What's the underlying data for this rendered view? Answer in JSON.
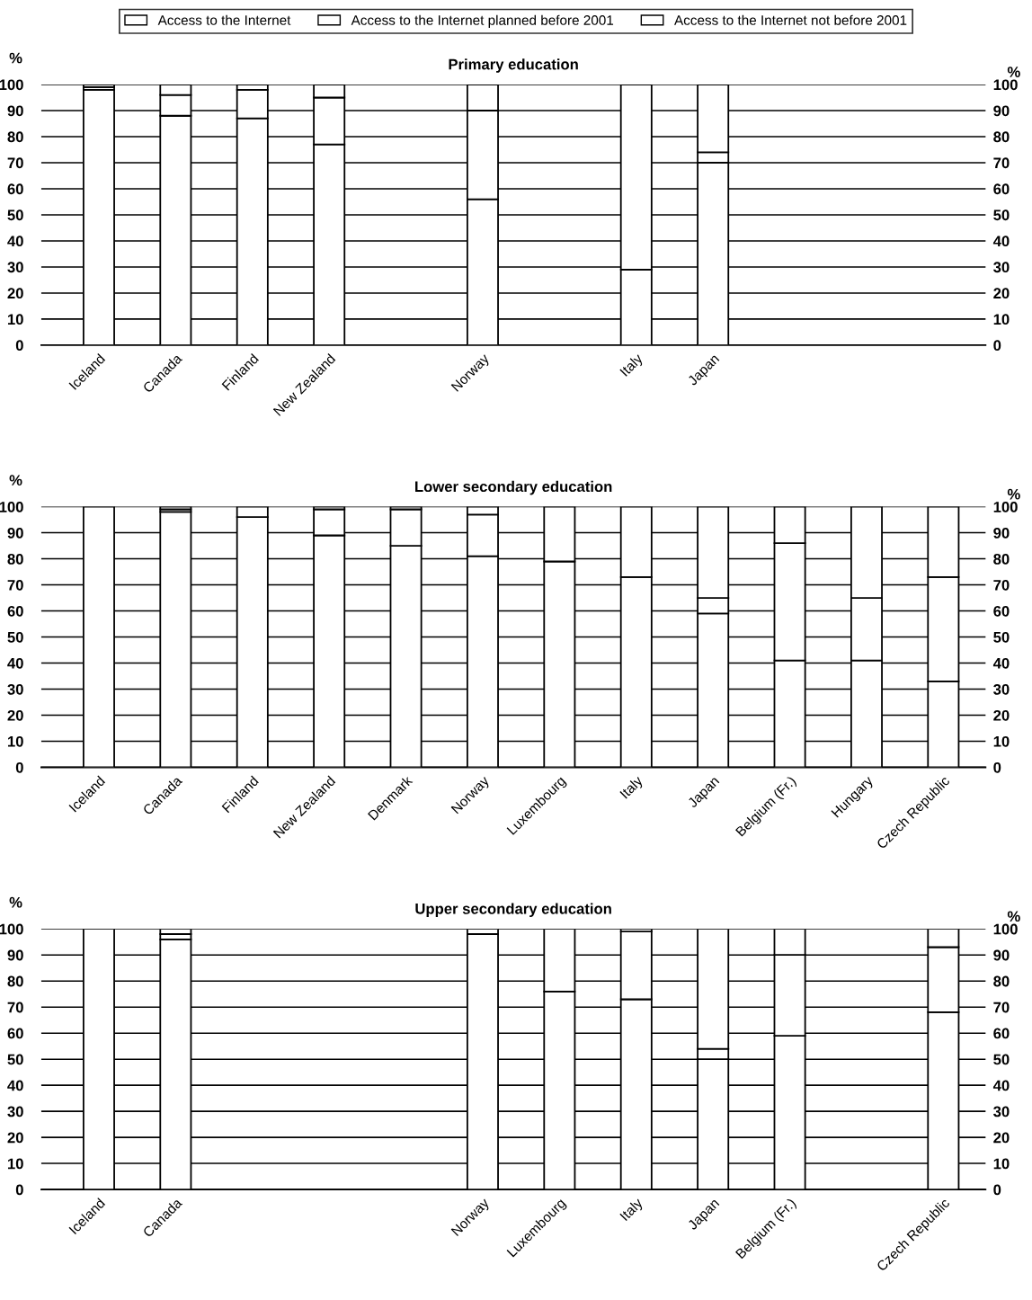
{
  "chart_data": [
    {
      "type": "bar",
      "stacked": true,
      "title": "Primary education",
      "ylabel": "%",
      "y2label": "%",
      "legend": "top",
      "grid": "y",
      "categories": [
        "Iceland",
        "Canada",
        "Finland",
        "New Zealand",
        null,
        "Norway",
        null,
        "Italy",
        "Japan",
        null,
        null,
        null
      ],
      "series": [
        {
          "name": "Access to the Internet",
          "color": "#ffffff",
          "values": [
            98,
            88,
            87,
            77,
            null,
            56,
            null,
            29,
            70,
            null,
            null,
            null
          ]
        },
        {
          "name": "Access to the Internet planned before 2001",
          "color": "#ffffff",
          "values": [
            1,
            8,
            11,
            18,
            null,
            34,
            null,
            71,
            4,
            null,
            null,
            null
          ]
        },
        {
          "name": "Access to the Internet not before 2001",
          "color": "#ffffff",
          "values": [
            1,
            4,
            2,
            5,
            null,
            10,
            null,
            0,
            26,
            null,
            null,
            null
          ]
        }
      ],
      "ylim": [
        0,
        100
      ],
      "yticks": [
        0,
        10,
        20,
        30,
        40,
        50,
        60,
        70,
        80,
        90,
        100
      ],
      "y2lim": [
        0,
        100
      ],
      "y2ticks": [
        0,
        10,
        20,
        30,
        40,
        50,
        60,
        70,
        80,
        90,
        100
      ]
    },
    {
      "type": "bar",
      "stacked": true,
      "title": "Lower secondary education",
      "ylabel": "%",
      "y2label": "%",
      "grid": "y",
      "categories": [
        "Iceland",
        "Canada",
        "Finland",
        "New Zealand",
        "Denmark",
        "Norway",
        "Luxembourg",
        "Italy",
        "Japan",
        "Belgium (Fr.)",
        "Hungary",
        "Czech Republic"
      ],
      "series": [
        {
          "color": "#ffffff",
          "values": [
            100,
            98,
            96,
            89,
            85,
            81,
            79,
            73,
            59,
            41,
            41,
            33
          ]
        },
        {
          "color": "#ffffff",
          "values": [
            0,
            1,
            4,
            10,
            14,
            16,
            21,
            27,
            6,
            45,
            24,
            40
          ]
        },
        {
          "color": "#ffffff",
          "values": [
            0,
            1,
            0,
            1,
            1,
            3,
            0,
            0,
            35,
            14,
            35,
            27
          ]
        }
      ],
      "ylim": [
        0,
        100
      ],
      "yticks": [
        0,
        10,
        20,
        30,
        40,
        50,
        60,
        70,
        80,
        90,
        100
      ],
      "y2lim": [
        0,
        100
      ],
      "y2ticks": [
        0,
        10,
        20,
        30,
        40,
        50,
        60,
        70,
        80,
        90,
        100
      ]
    },
    {
      "type": "bar",
      "stacked": true,
      "title": "Upper secondary education",
      "ylabel": "%",
      "y2label": "%",
      "grid": "y",
      "categories": [
        "Iceland",
        "Canada",
        null,
        null,
        null,
        "Norway",
        "Luxembourg",
        "Italy",
        "Japan",
        "Belgium (Fr.)",
        null,
        "Czech Republic"
      ],
      "series": [
        {
          "color": "#ffffff",
          "values": [
            100,
            96,
            null,
            null,
            null,
            98,
            76,
            73,
            50,
            59,
            null,
            68
          ]
        },
        {
          "color": "#ffffff",
          "values": [
            0,
            2,
            null,
            null,
            null,
            2,
            24,
            26,
            4,
            31,
            null,
            25
          ]
        },
        {
          "color": "#ffffff",
          "values": [
            0,
            2,
            null,
            null,
            null,
            0,
            0,
            1,
            46,
            10,
            null,
            7
          ]
        }
      ],
      "ylim": [
        0,
        100
      ],
      "yticks": [
        0,
        10,
        20,
        30,
        40,
        50,
        60,
        70,
        80,
        90,
        100
      ],
      "y2lim": [
        0,
        100
      ],
      "y2ticks": [
        0,
        10,
        20,
        30,
        40,
        50,
        60,
        70,
        80,
        90,
        100
      ]
    }
  ]
}
